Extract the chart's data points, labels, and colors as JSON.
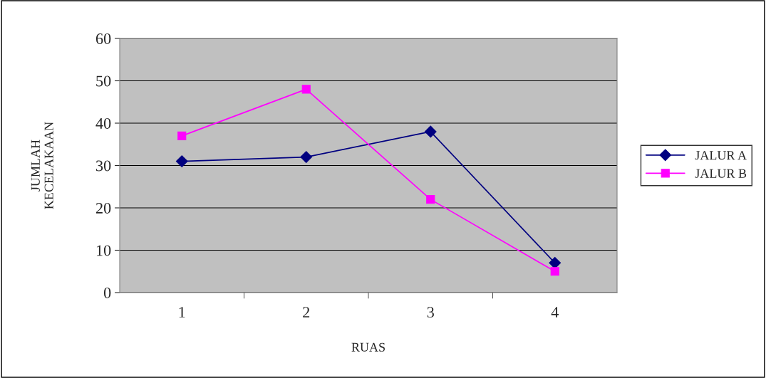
{
  "chart_data": {
    "type": "line",
    "xlabel": "RUAS",
    "ylabel": "JUMLAH\nKECELAKAAN",
    "categories": [
      "1",
      "2",
      "3",
      "4"
    ],
    "series": [
      {
        "name": "JALUR A",
        "color": "#000080",
        "values": [
          31,
          32,
          38,
          7
        ],
        "marker": "diamond"
      },
      {
        "name": "JALUR B",
        "color": "#ff00ff",
        "values": [
          37,
          48,
          22,
          5
        ],
        "marker": "square"
      }
    ],
    "ylim": [
      0,
      60
    ],
    "yticks": [
      0,
      10,
      20,
      30,
      40,
      50,
      60
    ],
    "grid": "y",
    "legend": "right"
  }
}
